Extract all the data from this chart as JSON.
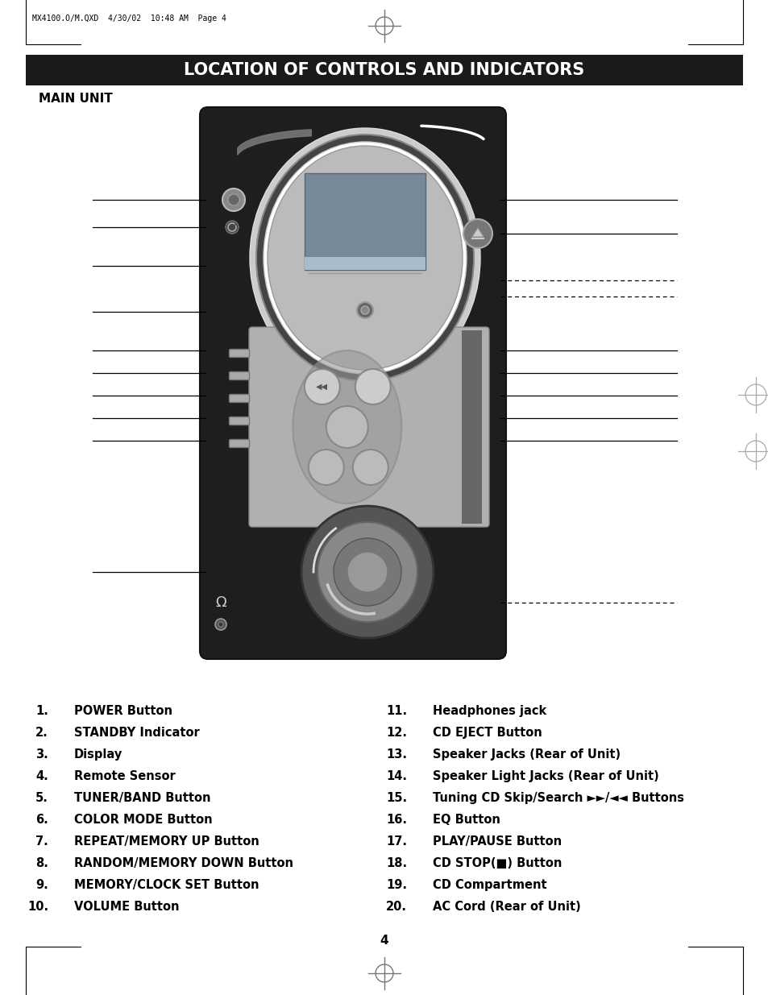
{
  "title": "LOCATION OF CONTROLS AND INDICATORS",
  "title_bg": "#1a1a1a",
  "title_color": "#ffffff",
  "title_fontsize": 15,
  "section_label": "MAIN UNIT",
  "page_number": "4",
  "header_text": "MX4100.O/M.QXD  4/30/02  10:48 AM  Page 4",
  "left_items": [
    {
      "num": "1.",
      "text": "POWER Button"
    },
    {
      "num": "2.",
      "text": "STANDBY Indicator"
    },
    {
      "num": "3.",
      "text": "Display"
    },
    {
      "num": "4.",
      "text": "Remote Sensor"
    },
    {
      "num": "5.",
      "text": "TUNER/BAND Button"
    },
    {
      "num": "6.",
      "text": "COLOR MODE Button"
    },
    {
      "num": "7.",
      "text": "REPEAT/MEMORY UP Button"
    },
    {
      "num": "8.",
      "text": "RANDOM/MEMORY DOWN Button"
    },
    {
      "num": "9.",
      "text": "MEMORY/CLOCK SET Button"
    },
    {
      "num": "10.",
      "text": "VOLUME Button"
    }
  ],
  "right_items": [
    {
      "num": "11.",
      "text": "Headphones jack"
    },
    {
      "num": "12.",
      "text": "CD EJECT Button"
    },
    {
      "num": "13.",
      "text": "Speaker Jacks (Rear of Unit)"
    },
    {
      "num": "14.",
      "text": "Speaker Light Jacks (Rear of Unit)"
    },
    {
      "num": "15.",
      "text": "Tuning CD Skip/Search ►►/◄◄ Buttons"
    },
    {
      "num": "16.",
      "text": "EQ Button"
    },
    {
      "num": "17.",
      "text": "PLAY/PAUSE Button"
    },
    {
      "num": "18.",
      "text": "CD STOP(■) Button"
    },
    {
      "num": "19.",
      "text": "CD Compartment"
    },
    {
      "num": "20.",
      "text": "AC Cord (Rear of Unit)"
    }
  ],
  "list_fontsize": 10.5,
  "bg_color": "#ffffff",
  "device_body_color": "#1e1e1e",
  "device_body_edge": "#111111",
  "ellipse_outer_color": "#555555",
  "ellipse_inner_color": "#333333",
  "screen_color": "#778899",
  "panel_color": "#aaaaaa",
  "knob_outer": "#555555",
  "knob_mid": "#888888",
  "knob_inner": "#666666"
}
